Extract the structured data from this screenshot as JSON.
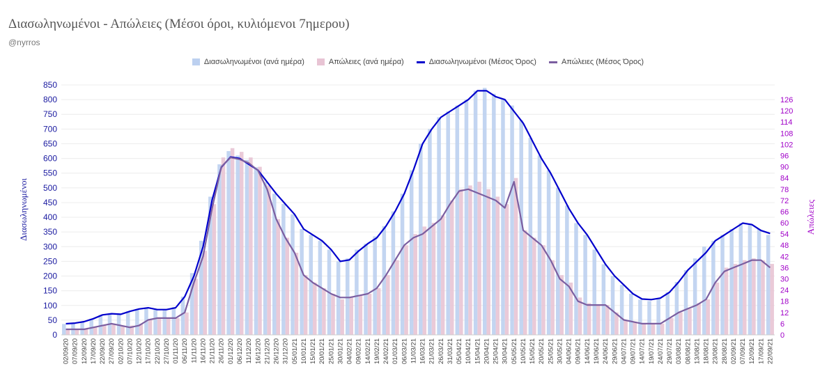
{
  "title": "Διασωληνωμένοι - Απώλειες (Μέσοι όροι, κυλιόμενοι 7ημερου)",
  "subtitle": "@nyrros",
  "colors": {
    "intubated_bar": "#bcd0f0",
    "deaths_bar": "#e8c4d4",
    "intubated_line": "#0000cc",
    "deaths_line": "#7b5ea0",
    "left_axis": "#1a1aa0",
    "right_axis": "#a000c8"
  },
  "chart_data": {
    "type": "bar",
    "ylabel": "Διασωληνωμένοι",
    "y2label": "Απώλειες",
    "ylim": [
      0,
      850
    ],
    "y2lim": [
      0,
      126
    ],
    "yticks": [
      "0",
      "50",
      "100",
      "150",
      "200",
      "250",
      "300",
      "350",
      "400",
      "450",
      "500",
      "550",
      "600",
      "650",
      "700",
      "750",
      "800",
      "850"
    ],
    "y2ticks": [
      "0",
      "6",
      "12",
      "18",
      "24",
      "30",
      "36",
      "42",
      "48",
      "54",
      "60",
      "66",
      "72",
      "78",
      "84",
      "90",
      "96",
      "102",
      "108",
      "114",
      "120",
      "126"
    ],
    "x_tick_labels": [
      "02/09/20",
      "07/09/20",
      "12/09/20",
      "17/09/20",
      "22/09/20",
      "27/09/20",
      "02/10/20",
      "07/10/20",
      "12/10/20",
      "17/10/20",
      "22/10/20",
      "27/10/20",
      "01/11/20",
      "06/11/20",
      "11/11/20",
      "16/11/20",
      "21/11/20",
      "26/11/20",
      "01/12/20",
      "06/12/20",
      "11/12/20",
      "16/12/20",
      "21/12/20",
      "26/12/20",
      "31/12/20",
      "05/01/21",
      "10/01/21",
      "15/01/21",
      "20/01/21",
      "25/01/21",
      "30/01/21",
      "04/02/21",
      "09/02/21",
      "14/02/21",
      "19/02/21",
      "24/02/21",
      "01/03/21",
      "06/03/21",
      "11/03/21",
      "16/03/21",
      "21/03/21",
      "26/03/21",
      "31/03/21",
      "05/04/21",
      "10/04/21",
      "15/04/21",
      "20/04/21",
      "25/04/21",
      "30/04/21",
      "05/05/21",
      "10/05/21",
      "15/05/21",
      "20/05/21",
      "25/05/21",
      "30/05/21",
      "04/06/21",
      "09/06/21",
      "14/06/21",
      "19/06/21",
      "24/06/21",
      "29/06/21",
      "04/07/21",
      "09/07/21",
      "14/07/21",
      "19/07/21",
      "24/07/21",
      "29/07/21",
      "03/08/21",
      "08/08/21",
      "13/08/21",
      "18/08/21",
      "23/08/21",
      "28/08/21",
      "02/09/21",
      "07/09/21",
      "12/09/21",
      "17/09/21",
      "22/09/21"
    ],
    "legend_position": "top-center",
    "series": [
      {
        "name": "Διασωληνωμένοι (ανά ημέρα)",
        "type": "bar",
        "axis": "left",
        "values": [
          37,
          40,
          45,
          55,
          68,
          72,
          70,
          80,
          88,
          92,
          86,
          86,
          95,
          130,
          210,
          320,
          470,
          580,
          625,
          610,
          595,
          570,
          520,
          480,
          445,
          410,
          360,
          340,
          320,
          290,
          250,
          260,
          290,
          310,
          335,
          370,
          420,
          480,
          560,
          650,
          700,
          740,
          760,
          780,
          800,
          830,
          840,
          820,
          800,
          780,
          730,
          670,
          610,
          560,
          500,
          440,
          380,
          340,
          290,
          240,
          200,
          170,
          140,
          120,
          115,
          122,
          145,
          180,
          220,
          260,
          300,
          320,
          340,
          360,
          380,
          375,
          360,
          340
        ]
      },
      {
        "name": "Απώλειες (ανά ημέρα)",
        "type": "bar",
        "axis": "right",
        "values": [
          3,
          3,
          3,
          4,
          5,
          6,
          5,
          5,
          6,
          8,
          9,
          9,
          9,
          12,
          30,
          45,
          70,
          95,
          100,
          98,
          95,
          90,
          80,
          62,
          52,
          44,
          32,
          28,
          25,
          22,
          19,
          20,
          21,
          22,
          25,
          32,
          40,
          48,
          54,
          58,
          60,
          64,
          72,
          78,
          80,
          82,
          78,
          74,
          70,
          84,
          56,
          52,
          48,
          40,
          32,
          28,
          20,
          17,
          16,
          16,
          12,
          8,
          7,
          6,
          6,
          6,
          9,
          12,
          14,
          17,
          19,
          28,
          36,
          38,
          40,
          41,
          40,
          38
        ]
      },
      {
        "name": "Διασωληνωμένοι (Μέσος Όρος)",
        "type": "line",
        "axis": "left",
        "values": [
          38,
          40,
          45,
          55,
          68,
          72,
          70,
          80,
          88,
          92,
          86,
          86,
          92,
          130,
          200,
          300,
          460,
          570,
          605,
          600,
          580,
          560,
          520,
          480,
          445,
          410,
          360,
          340,
          320,
          290,
          250,
          255,
          285,
          310,
          330,
          370,
          420,
          480,
          560,
          650,
          700,
          740,
          760,
          780,
          800,
          830,
          830,
          810,
          800,
          760,
          720,
          660,
          600,
          550,
          490,
          430,
          380,
          340,
          290,
          240,
          200,
          170,
          140,
          122,
          120,
          125,
          145,
          180,
          220,
          250,
          280,
          320,
          340,
          360,
          380,
          375,
          355,
          345
        ]
      },
      {
        "name": "Απώλειες (Μέσος Όρος)",
        "type": "line",
        "axis": "right",
        "values": [
          3,
          3,
          3,
          4,
          5,
          6,
          5,
          4,
          5,
          8,
          9,
          9,
          9,
          12,
          28,
          42,
          68,
          90,
          95,
          94,
          92,
          88,
          78,
          62,
          52,
          44,
          32,
          28,
          25,
          22,
          20,
          20,
          21,
          22,
          25,
          32,
          40,
          48,
          52,
          54,
          58,
          62,
          70,
          77,
          78,
          76,
          74,
          72,
          68,
          82,
          56,
          52,
          48,
          40,
          30,
          26,
          18,
          16,
          16,
          16,
          12,
          8,
          7,
          6,
          6,
          6,
          9,
          12,
          14,
          16,
          19,
          28,
          34,
          36,
          38,
          40,
          40,
          36
        ]
      }
    ]
  }
}
